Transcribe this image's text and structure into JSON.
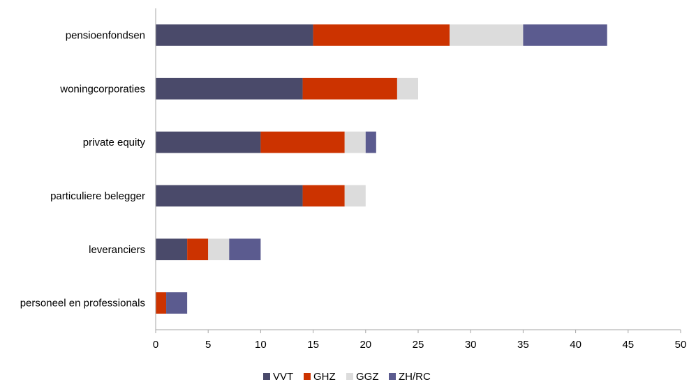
{
  "chart_data": {
    "type": "bar",
    "orientation": "horizontal",
    "stacked": true,
    "title": "",
    "xlabel": "",
    "ylabel": "",
    "categories": [
      "pensioenfondsen",
      "woningcorporaties",
      "private equity",
      "particuliere belegger",
      "leveranciers",
      "personeel en professionals"
    ],
    "series": [
      {
        "name": "VVT",
        "color": "#4a4a6a",
        "values": [
          15,
          14,
          10,
          14,
          3,
          0
        ]
      },
      {
        "name": "GHZ",
        "color": "#cc3300",
        "values": [
          13,
          9,
          8,
          4,
          2,
          1
        ]
      },
      {
        "name": "GGZ",
        "color": "#dcdcdc",
        "values": [
          7,
          2,
          2,
          2,
          2,
          0
        ]
      },
      {
        "name": "ZH/RC",
        "color": "#5b5b8f",
        "values": [
          8,
          0,
          1,
          0,
          3,
          2
        ]
      }
    ],
    "xlim": [
      0,
      50
    ],
    "xticks": [
      0,
      5,
      10,
      15,
      20,
      25,
      30,
      35,
      40,
      45,
      50
    ],
    "grid": false,
    "legend_position": "bottom"
  }
}
